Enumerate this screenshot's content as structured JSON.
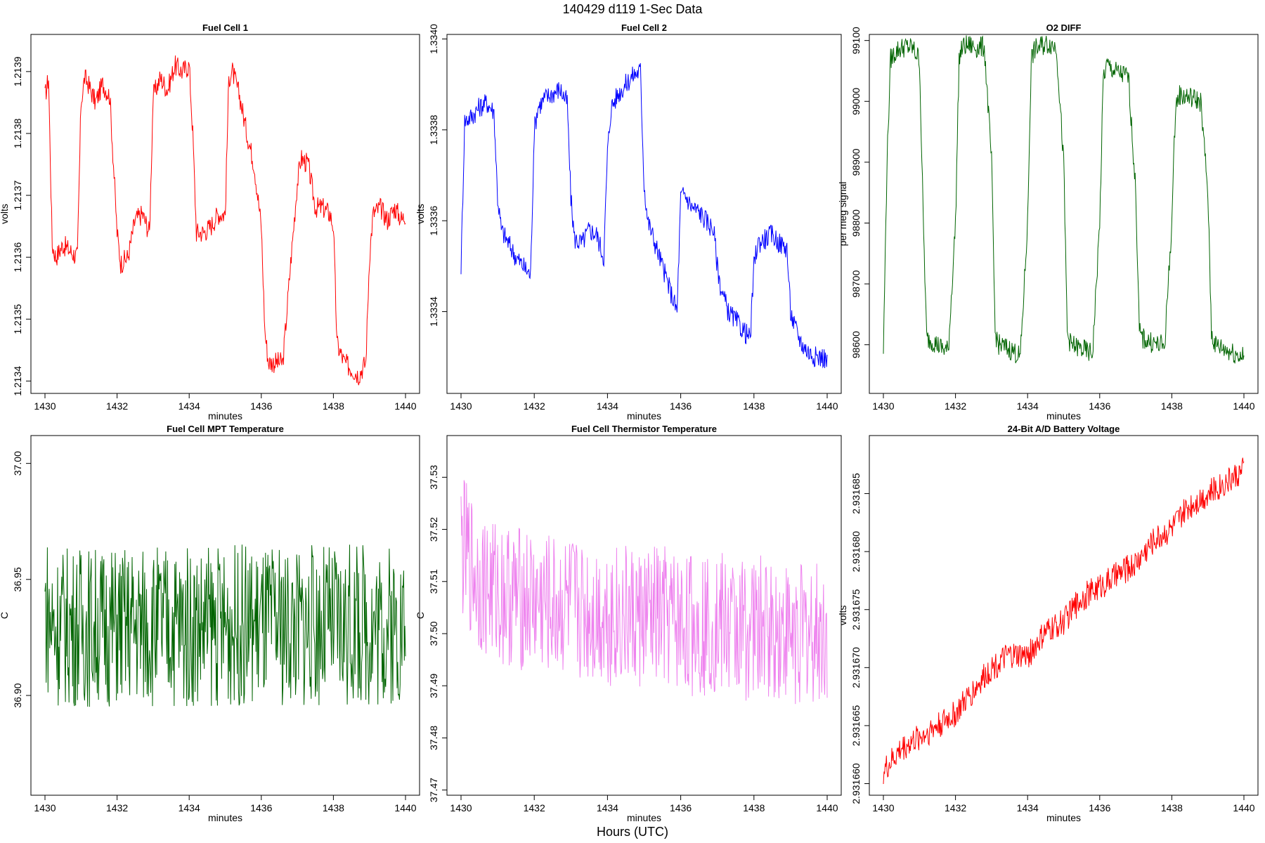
{
  "figure": {
    "title": "140429   d119   1-Sec Data",
    "xlabel": "Hours (UTC)"
  },
  "chart_data": [
    {
      "type": "line",
      "title": "Fuel Cell 1",
      "xlabel": "minutes",
      "ylabel": "volts",
      "color": "#ff0000",
      "xlim": [
        1430,
        1440
      ],
      "ylim": [
        1.21338,
        1.21396
      ],
      "xticks": [
        "1430",
        "1432",
        "1434",
        "1436",
        "1438",
        "1440"
      ],
      "yticks": [
        "1.2134",
        "1.2135",
        "1.2136",
        "1.2137",
        "1.2138",
        "1.2139"
      ],
      "series": [
        {
          "x": [
            1430.0,
            1430.1,
            1430.2,
            1430.3,
            1430.5,
            1430.7,
            1430.9,
            1431.0,
            1431.1,
            1431.2,
            1431.4,
            1431.6,
            1431.8,
            1432.0,
            1432.1,
            1432.3,
            1432.5,
            1432.7,
            1432.9,
            1433.0,
            1433.2,
            1433.4,
            1433.6,
            1433.8,
            1434.0,
            1434.1,
            1434.2,
            1434.4,
            1434.6,
            1434.8,
            1435.0,
            1435.1,
            1435.2,
            1435.4,
            1435.6,
            1435.8,
            1436.0,
            1436.1,
            1436.2,
            1436.4,
            1436.6,
            1436.8,
            1437.0,
            1437.1,
            1437.3,
            1437.5,
            1437.7,
            1437.9,
            1438.0,
            1438.1,
            1438.3,
            1438.5,
            1438.7,
            1438.9,
            1439.0,
            1439.1,
            1439.3,
            1439.5,
            1439.7,
            1439.9,
            1440.0
          ],
          "y": [
            1.21386,
            1.21389,
            1.21362,
            1.2136,
            1.21362,
            1.21361,
            1.2136,
            1.21385,
            1.21389,
            1.21388,
            1.21385,
            1.21388,
            1.21386,
            1.21364,
            1.21359,
            1.2136,
            1.21366,
            1.21367,
            1.21364,
            1.21386,
            1.21389,
            1.21387,
            1.21391,
            1.2139,
            1.21391,
            1.2138,
            1.21364,
            1.21364,
            1.21365,
            1.21367,
            1.21367,
            1.21389,
            1.2139,
            1.21386,
            1.2138,
            1.21375,
            1.21365,
            1.21348,
            1.21343,
            1.21343,
            1.21343,
            1.21358,
            1.21372,
            1.21376,
            1.21375,
            1.21368,
            1.21368,
            1.21367,
            1.21365,
            1.21346,
            1.21343,
            1.21342,
            1.21341,
            1.21343,
            1.2136,
            1.21367,
            1.21368,
            1.21366,
            1.21368,
            1.21366,
            1.21367
          ]
        }
      ]
    },
    {
      "type": "line",
      "title": "Fuel Cell 2",
      "xlabel": "minutes",
      "ylabel": "volts",
      "color": "#0000ff",
      "xlim": [
        1430,
        1440
      ],
      "ylim": [
        1.33322,
        1.33401
      ],
      "xticks": [
        "1430",
        "1432",
        "1434",
        "1436",
        "1438",
        "1440"
      ],
      "yticks": [
        "1.3334",
        "1.3336",
        "1.3338",
        "1.3340"
      ],
      "series": [
        {
          "x": [
            1430.0,
            1430.1,
            1430.3,
            1430.5,
            1430.7,
            1430.9,
            1431.0,
            1431.1,
            1431.3,
            1431.5,
            1431.7,
            1431.9,
            1432.0,
            1432.1,
            1432.3,
            1432.5,
            1432.7,
            1432.9,
            1433.0,
            1433.1,
            1433.3,
            1433.5,
            1433.7,
            1433.9,
            1434.0,
            1434.1,
            1434.3,
            1434.5,
            1434.7,
            1434.9,
            1435.0,
            1435.1,
            1435.3,
            1435.5,
            1435.7,
            1435.9,
            1436.0,
            1436.1,
            1436.3,
            1436.5,
            1436.7,
            1436.9,
            1437.0,
            1437.1,
            1437.3,
            1437.5,
            1437.7,
            1437.9,
            1438.0,
            1438.1,
            1438.3,
            1438.5,
            1438.7,
            1438.9,
            1439.0,
            1439.1,
            1439.3,
            1439.5,
            1439.7,
            1439.9,
            1440.0
          ],
          "y": [
            1.3335,
            1.33382,
            1.33383,
            1.33385,
            1.33386,
            1.33384,
            1.33365,
            1.33358,
            1.33355,
            1.33352,
            1.3335,
            1.33348,
            1.3338,
            1.33385,
            1.33387,
            1.33388,
            1.33389,
            1.33386,
            1.33365,
            1.33356,
            1.33355,
            1.33358,
            1.33357,
            1.33352,
            1.33375,
            1.33385,
            1.33388,
            1.3339,
            1.33392,
            1.33393,
            1.33368,
            1.3336,
            1.33355,
            1.3335,
            1.33345,
            1.3334,
            1.33365,
            1.33366,
            1.33363,
            1.33362,
            1.3336,
            1.33358,
            1.3335,
            1.33345,
            1.3334,
            1.33338,
            1.33336,
            1.33334,
            1.3335,
            1.33355,
            1.33356,
            1.33357,
            1.33355,
            1.33354,
            1.3334,
            1.33337,
            1.33333,
            1.33331,
            1.3333,
            1.3333,
            1.33329
          ]
        }
      ]
    },
    {
      "type": "line",
      "title": "O2 DIFF",
      "xlabel": "minutes",
      "ylabel": "per meg signal",
      "color": "#006400",
      "xlim": [
        1430,
        1440
      ],
      "ylim": [
        98520,
        99110
      ],
      "xticks": [
        "1430",
        "1432",
        "1434",
        "1436",
        "1438",
        "1440"
      ],
      "yticks": [
        "98600",
        "98700",
        "98800",
        "98900",
        "99000",
        "99100"
      ],
      "series": [
        {
          "x": [
            1430.0,
            1430.1,
            1430.2,
            1430.4,
            1430.6,
            1430.8,
            1431.0,
            1431.1,
            1431.2,
            1431.4,
            1431.6,
            1431.8,
            1432.0,
            1432.1,
            1432.2,
            1432.4,
            1432.6,
            1432.8,
            1433.0,
            1433.1,
            1433.2,
            1433.4,
            1433.6,
            1433.8,
            1434.0,
            1434.1,
            1434.2,
            1434.4,
            1434.6,
            1434.8,
            1435.0,
            1435.1,
            1435.2,
            1435.4,
            1435.6,
            1435.8,
            1436.0,
            1436.1,
            1436.2,
            1436.4,
            1436.6,
            1436.8,
            1437.0,
            1437.1,
            1437.2,
            1437.4,
            1437.6,
            1437.8,
            1438.0,
            1438.1,
            1438.2,
            1438.4,
            1438.6,
            1438.8,
            1439.0,
            1439.1,
            1439.2,
            1439.4,
            1439.6,
            1439.8,
            1440.0
          ],
          "y": [
            98590,
            98900,
            99070,
            99085,
            99090,
            99088,
            99070,
            98820,
            98610,
            98605,
            98595,
            98590,
            98800,
            99070,
            99090,
            99092,
            99088,
            99090,
            98900,
            98620,
            98600,
            98595,
            98590,
            98580,
            98800,
            99070,
            99085,
            99092,
            99095,
            99090,
            98900,
            98620,
            98600,
            98595,
            98590,
            98585,
            98800,
            99040,
            99060,
            99050,
            99045,
            99040,
            98850,
            98620,
            98610,
            98605,
            98600,
            98598,
            98800,
            98990,
            99010,
            99008,
            99005,
            99000,
            98850,
            98620,
            98600,
            98595,
            98590,
            98585,
            98580
          ]
        }
      ]
    },
    {
      "type": "line",
      "title": "Fuel Cell MPT Temperature",
      "xlabel": "minutes",
      "ylabel": "C",
      "color": "#006400",
      "xlim": [
        1430,
        1440
      ],
      "ylim": [
        36.857,
        37.012
      ],
      "xticks": [
        "1430",
        "1432",
        "1434",
        "1436",
        "1438",
        "1440"
      ],
      "yticks": [
        "36.90",
        "36.95",
        "37.00"
      ],
      "series": [
        {
          "x": [
            1430.0,
            1430.2,
            1430.4,
            1430.6,
            1430.8,
            1431.0,
            1431.2,
            1431.4,
            1431.6,
            1431.8,
            1432.0,
            1432.2,
            1432.4,
            1432.6,
            1432.8,
            1433.0,
            1433.2,
            1433.4,
            1433.6,
            1433.8,
            1434.0,
            1434.2,
            1434.4,
            1434.6,
            1434.8,
            1435.0,
            1435.2,
            1435.4,
            1435.6,
            1435.8,
            1436.0,
            1436.2,
            1436.4,
            1436.6,
            1436.8,
            1437.0,
            1437.2,
            1437.4,
            1437.6,
            1437.8,
            1438.0,
            1438.2,
            1438.4,
            1438.6,
            1438.8,
            1439.0,
            1439.2,
            1439.4,
            1439.6,
            1439.8,
            1440.0
          ],
          "y": [
            36.938,
            36.93,
            36.93,
            36.93,
            36.93,
            36.93,
            36.93,
            36.93,
            36.93,
            36.93,
            36.93,
            36.93,
            36.93,
            36.93,
            36.93,
            36.93,
            36.93,
            36.93,
            36.93,
            36.93,
            36.93,
            36.93,
            36.93,
            36.93,
            36.93,
            36.93,
            36.93,
            36.93,
            36.93,
            36.93,
            36.93,
            36.93,
            36.93,
            36.93,
            36.93,
            36.93,
            36.93,
            36.93,
            36.93,
            36.93,
            36.93,
            36.93,
            36.93,
            36.93,
            36.93,
            36.93,
            36.93,
            36.93,
            36.93,
            36.93,
            36.93
          ],
          "noise": 0.035
        }
      ]
    },
    {
      "type": "line",
      "title": "Fuel Cell Thermistor Temperature",
      "xlabel": "minutes",
      "ylabel": "C",
      "color": "#ee82ee",
      "xlim": [
        1430,
        1440
      ],
      "ylim": [
        37.469,
        37.538
      ],
      "xticks": [
        "1430",
        "1432",
        "1434",
        "1436",
        "1438",
        "1440"
      ],
      "yticks": [
        "37.47",
        "37.48",
        "37.49",
        "37.50",
        "37.51",
        "37.52",
        "37.53"
      ],
      "series": [
        {
          "x": [
            1430.0,
            1430.5,
            1431.0,
            1431.5,
            1432.0,
            1432.5,
            1433.0,
            1433.5,
            1434.0,
            1434.5,
            1435.0,
            1435.5,
            1436.0,
            1436.5,
            1437.0,
            1437.5,
            1438.0,
            1438.5,
            1439.0,
            1439.5,
            1440.0
          ],
          "y": [
            37.517,
            37.51,
            37.508,
            37.507,
            37.506,
            37.505,
            37.505,
            37.504,
            37.504,
            37.503,
            37.503,
            37.503,
            37.502,
            37.502,
            37.502,
            37.501,
            37.501,
            37.501,
            37.5,
            37.5,
            37.5
          ],
          "noise": 0.014
        }
      ]
    },
    {
      "type": "line",
      "title": "24-Bit A/D Battery Voltage",
      "xlabel": "minutes",
      "ylabel": "volts",
      "color": "#ff0000",
      "xlim": [
        1430,
        1440
      ],
      "ylim": [
        2.931659,
        2.93169
      ],
      "xticks": [
        "1430",
        "1432",
        "1434",
        "1436",
        "1438",
        "1440"
      ],
      "yticks": [
        "2.931660",
        "2.931665",
        "2.931670",
        "2.931675",
        "2.931680",
        "2.931685"
      ],
      "series": [
        {
          "x": [
            1430.0,
            1430.5,
            1431.0,
            1431.5,
            1432.0,
            1432.5,
            1433.0,
            1433.5,
            1434.0,
            1434.5,
            1435.0,
            1435.5,
            1436.0,
            1436.5,
            1437.0,
            1437.5,
            1438.0,
            1438.5,
            1439.0,
            1439.5,
            1440.0
          ],
          "y": [
            2.931661,
            2.931663,
            2.931664,
            2.931665,
            2.931666,
            2.931668,
            2.93167,
            2.931671,
            2.931671,
            2.931673,
            2.931674,
            2.931676,
            2.931677,
            2.931678,
            2.931679,
            2.931681,
            2.931682,
            2.931684,
            2.931685,
            2.931686,
            2.931687
          ],
          "noise": 1.2e-06
        }
      ]
    }
  ]
}
